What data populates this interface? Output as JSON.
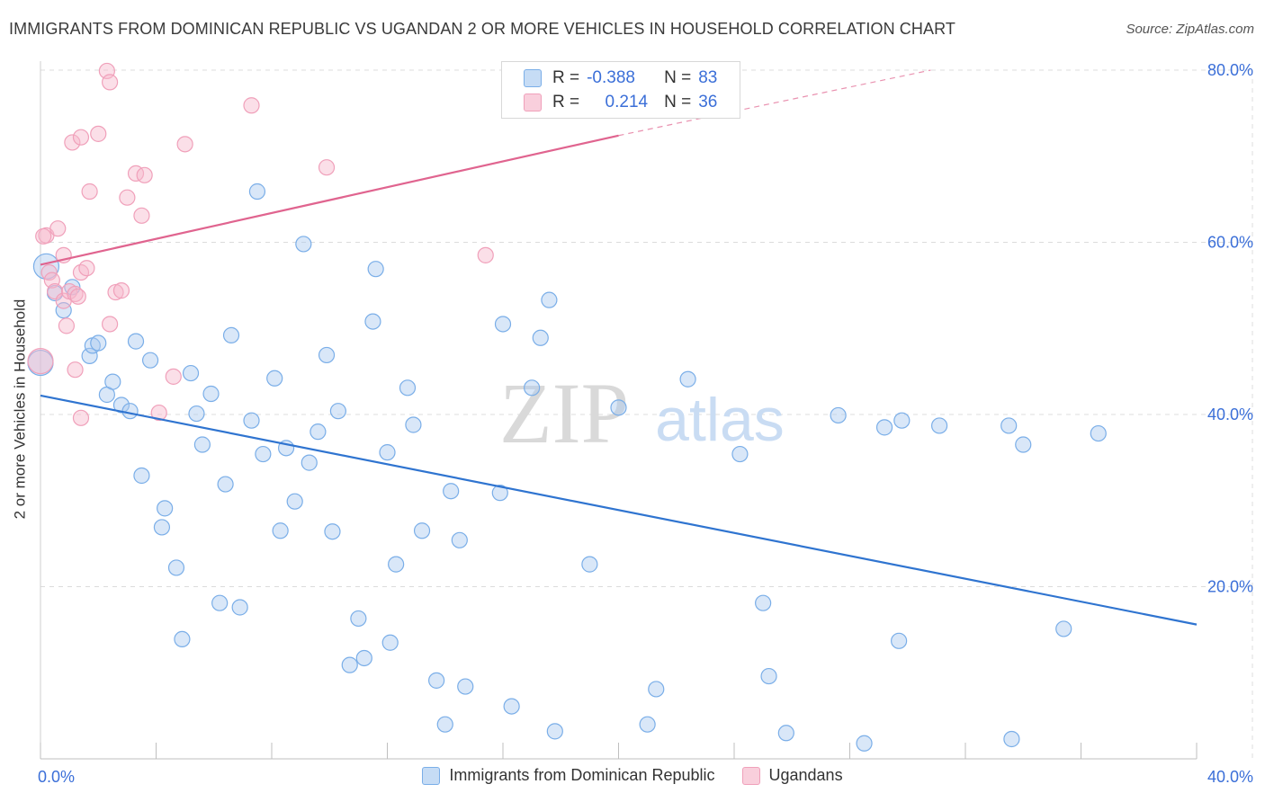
{
  "title": "IMMIGRANTS FROM DOMINICAN REPUBLIC VS UGANDAN 2 OR MORE VEHICLES IN HOUSEHOLD CORRELATION CHART",
  "source": "Source: ZipAtlas.com",
  "watermark": {
    "zip": "ZIP",
    "atlas": "atlas"
  },
  "stats": [
    {
      "r_label": "R =",
      "r_value": "-0.388",
      "n_label": "N =",
      "n_value": "83",
      "color": "#7aaee8"
    },
    {
      "r_label": "R =",
      "r_value": " 0.214",
      "n_label": "N =",
      "n_value": "36",
      "color": "#f0a0ba"
    }
  ],
  "legend": [
    {
      "label": "Immigrants from Dominican Republic",
      "color": "#7aaee8"
    },
    {
      "label": "Ugandans",
      "color": "#f0a0ba"
    }
  ],
  "chart_data": {
    "type": "scatter",
    "title": "IMMIGRANTS FROM DOMINICAN REPUBLIC VS UGANDAN 2 OR MORE VEHICLES IN HOUSEHOLD CORRELATION CHART",
    "xlabel": "",
    "ylabel": "2 or more Vehicles in Household",
    "xlim": [
      0,
      40
    ],
    "ylim": [
      0,
      80
    ],
    "x_tick_labels": [
      {
        "value": 0,
        "label": "0.0%"
      },
      {
        "value": 40,
        "label": "40.0%"
      }
    ],
    "y_tick_labels": [
      {
        "value": 20,
        "label": "20.0%"
      },
      {
        "value": 40,
        "label": "40.0%"
      },
      {
        "value": 60,
        "label": "60.0%"
      },
      {
        "value": 80,
        "label": "80.0%"
      }
    ],
    "grid": true,
    "series": [
      {
        "name": "Immigrants from Dominican Republic",
        "color": "#7aaee8",
        "trend_color": "#2f74d0",
        "trend": {
          "x": [
            0,
            40
          ],
          "y": [
            42.2,
            15.6
          ]
        },
        "points": [
          [
            0.2,
            57.2
          ],
          [
            0.5,
            54.1
          ],
          [
            0.8,
            52.1
          ],
          [
            1.1,
            54.8
          ],
          [
            1.7,
            46.8
          ],
          [
            1.8,
            48.0
          ],
          [
            2.0,
            48.3
          ],
          [
            2.3,
            42.3
          ],
          [
            2.5,
            43.8
          ],
          [
            2.8,
            41.1
          ],
          [
            3.1,
            40.4
          ],
          [
            3.3,
            48.5
          ],
          [
            3.5,
            32.9
          ],
          [
            3.8,
            46.3
          ],
          [
            4.2,
            26.9
          ],
          [
            4.3,
            29.1
          ],
          [
            4.7,
            22.2
          ],
          [
            4.9,
            13.9
          ],
          [
            5.2,
            44.8
          ],
          [
            5.4,
            40.1
          ],
          [
            5.6,
            36.5
          ],
          [
            5.9,
            42.4
          ],
          [
            6.2,
            18.1
          ],
          [
            6.4,
            31.9
          ],
          [
            6.6,
            49.2
          ],
          [
            6.9,
            17.6
          ],
          [
            7.3,
            39.3
          ],
          [
            7.5,
            65.9
          ],
          [
            7.7,
            35.4
          ],
          [
            8.1,
            44.2
          ],
          [
            8.3,
            26.5
          ],
          [
            8.5,
            36.1
          ],
          [
            8.8,
            29.9
          ],
          [
            9.1,
            59.8
          ],
          [
            9.3,
            34.4
          ],
          [
            9.6,
            38.0
          ],
          [
            9.9,
            46.9
          ],
          [
            10.1,
            26.4
          ],
          [
            10.3,
            40.4
          ],
          [
            10.7,
            10.9
          ],
          [
            11.0,
            16.3
          ],
          [
            11.2,
            11.7
          ],
          [
            11.5,
            50.8
          ],
          [
            11.6,
            56.9
          ],
          [
            12.0,
            35.6
          ],
          [
            12.1,
            13.5
          ],
          [
            12.3,
            22.6
          ],
          [
            12.7,
            43.1
          ],
          [
            12.9,
            38.8
          ],
          [
            13.2,
            26.5
          ],
          [
            13.7,
            9.1
          ],
          [
            14.0,
            4.0
          ],
          [
            14.2,
            31.1
          ],
          [
            14.5,
            25.4
          ],
          [
            14.7,
            8.4
          ],
          [
            15.9,
            30.9
          ],
          [
            16.0,
            50.5
          ],
          [
            16.3,
            6.1
          ],
          [
            17.0,
            43.1
          ],
          [
            17.3,
            48.9
          ],
          [
            17.6,
            53.3
          ],
          [
            17.8,
            3.2
          ],
          [
            19.0,
            22.6
          ],
          [
            20.0,
            40.8
          ],
          [
            21.0,
            4.0
          ],
          [
            21.3,
            8.1
          ],
          [
            22.4,
            44.1
          ],
          [
            24.2,
            35.4
          ],
          [
            25.0,
            18.1
          ],
          [
            25.2,
            9.6
          ],
          [
            25.8,
            3.0
          ],
          [
            27.6,
            39.9
          ],
          [
            28.5,
            1.8
          ],
          [
            29.2,
            38.5
          ],
          [
            29.7,
            13.7
          ],
          [
            29.8,
            39.3
          ],
          [
            31.1,
            38.7
          ],
          [
            33.5,
            38.7
          ],
          [
            33.6,
            2.3
          ],
          [
            34.0,
            36.5
          ],
          [
            35.4,
            15.1
          ],
          [
            36.6,
            37.8
          ],
          [
            0.0,
            46.0
          ]
        ]
      },
      {
        "name": "Ugandans",
        "color": "#f0a0ba",
        "trend_color": "#e0648f",
        "trend": {
          "x": [
            0,
            20
          ],
          "y": [
            57.4,
            72.4
          ]
        },
        "trend_dashed": {
          "x": [
            20,
            30.8
          ],
          "y": [
            72.4,
            80.0
          ]
        },
        "points": [
          [
            0.2,
            60.8
          ],
          [
            0.3,
            56.5
          ],
          [
            0.4,
            55.6
          ],
          [
            0.5,
            54.3
          ],
          [
            0.6,
            61.6
          ],
          [
            0.8,
            53.2
          ],
          [
            0.8,
            58.5
          ],
          [
            0.9,
            50.3
          ],
          [
            1.0,
            54.3
          ],
          [
            1.1,
            71.6
          ],
          [
            1.2,
            54.0
          ],
          [
            1.2,
            45.2
          ],
          [
            1.3,
            53.7
          ],
          [
            1.4,
            39.6
          ],
          [
            1.4,
            56.5
          ],
          [
            1.4,
            72.2
          ],
          [
            1.6,
            57.0
          ],
          [
            1.7,
            65.9
          ],
          [
            2.0,
            72.6
          ],
          [
            2.3,
            79.9
          ],
          [
            2.4,
            78.6
          ],
          [
            2.4,
            50.5
          ],
          [
            2.6,
            54.2
          ],
          [
            2.8,
            54.4
          ],
          [
            3.0,
            65.2
          ],
          [
            3.3,
            68.0
          ],
          [
            3.5,
            63.1
          ],
          [
            3.6,
            67.8
          ],
          [
            4.1,
            40.2
          ],
          [
            4.6,
            44.4
          ],
          [
            5.0,
            71.4
          ],
          [
            7.3,
            75.9
          ],
          [
            9.9,
            68.7
          ],
          [
            15.4,
            58.5
          ],
          [
            0.0,
            46.2
          ],
          [
            0.1,
            60.7
          ]
        ]
      }
    ]
  }
}
